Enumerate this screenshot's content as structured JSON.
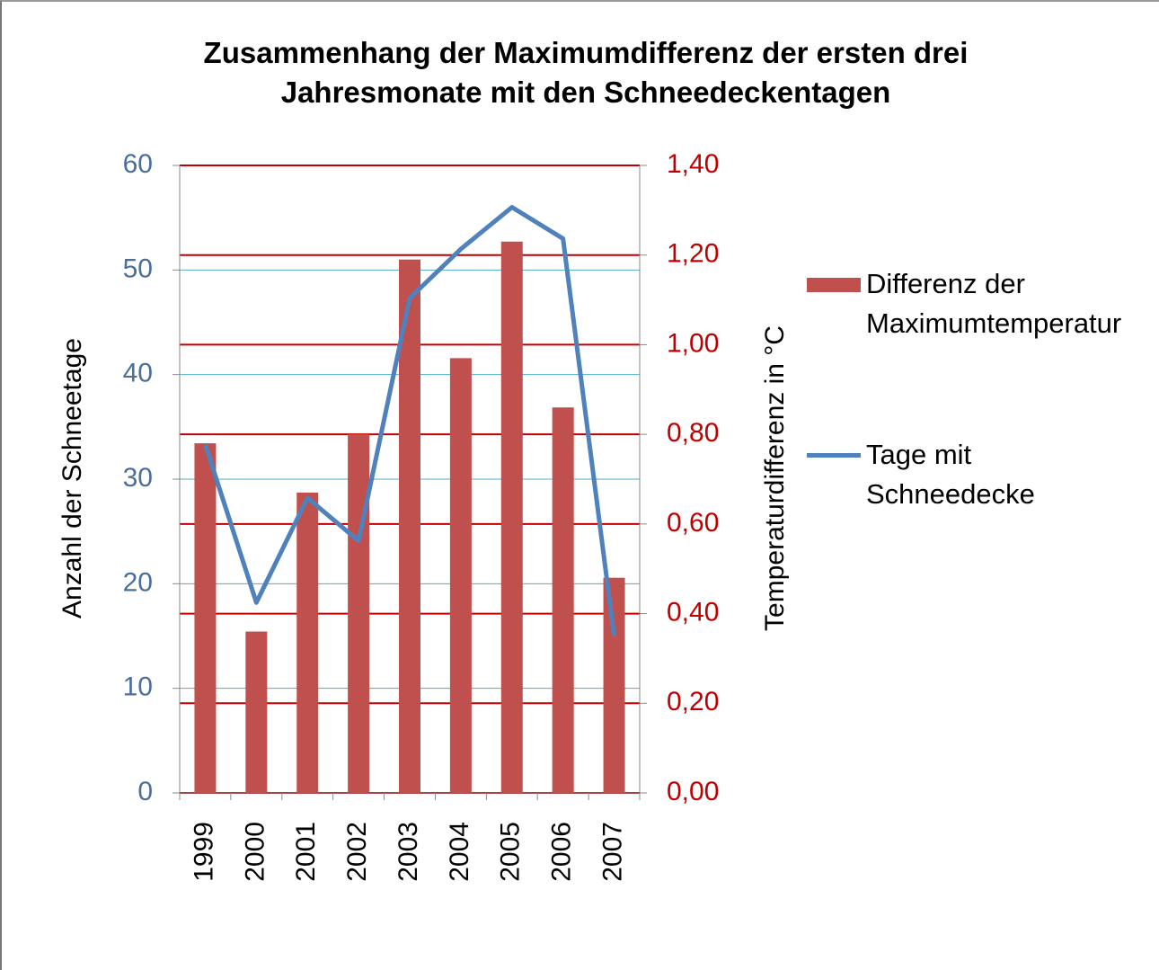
{
  "chart_data": {
    "type": "bar_line",
    "title": "Zusammenhang der Maximumdifferenz der ersten drei Jahresmonate mit den Schneedeckentagen",
    "ylabel": "Anzahl der Schneetage",
    "y2label": "Temperaturdifferenz in °C",
    "categories": [
      "1999",
      "2000",
      "2001",
      "2002",
      "2003",
      "2004",
      "2005",
      "2006",
      "2007"
    ],
    "ylim": [
      0,
      60
    ],
    "yticks": [
      0,
      10,
      20,
      30,
      40,
      50,
      60
    ],
    "y2lim": [
      0,
      1.4
    ],
    "y2ticks": [
      {
        "value": 0,
        "label": "0,00"
      },
      {
        "value": 0.2,
        "label": "0,20"
      },
      {
        "value": 0.4,
        "label": "0,40"
      },
      {
        "value": 0.6,
        "label": "0,60"
      },
      {
        "value": 0.8,
        "label": "0,80"
      },
      {
        "value": 1.0,
        "label": "1,00"
      },
      {
        "value": 1.2,
        "label": "1,20"
      },
      {
        "value": 1.4,
        "label": "1,40"
      }
    ],
    "grid": true,
    "legend": "right",
    "series": [
      {
        "name": "Differenz der Maximumtemperatur",
        "type": "bar",
        "axis": "y2",
        "color": "#c0504d",
        "values": [
          0.78,
          0.36,
          0.67,
          0.8,
          1.19,
          0.97,
          1.23,
          0.86,
          0.48
        ]
      },
      {
        "name": "Tage mit Schneedecke",
        "type": "line",
        "color": "#4f81bd",
        "values": [
          33.3,
          18.2,
          28.2,
          24.1,
          47.3,
          52.0,
          56.0,
          53.0,
          15.0
        ]
      }
    ]
  }
}
